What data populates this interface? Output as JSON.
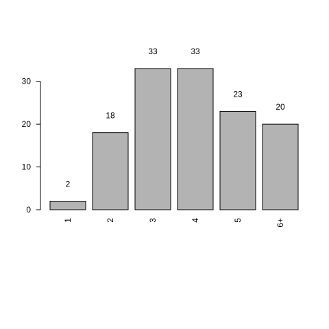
{
  "chart_data": {
    "type": "bar",
    "categories": [
      "1",
      "2",
      "3",
      "4",
      "5",
      "6+"
    ],
    "values": [
      2,
      18,
      33,
      33,
      23,
      20
    ],
    "data_labels": [
      "2",
      "18",
      "33",
      "33",
      "23",
      "20"
    ],
    "title": "",
    "xlabel": "",
    "ylabel": "",
    "ylim": [
      0,
      33
    ],
    "yticks": [
      0,
      10,
      20,
      30
    ],
    "x_tick_label_rotation": "vertical",
    "grid": false,
    "legend": "none",
    "bar_fill": "#b3b3b3",
    "bar_stroke": "#000000"
  }
}
